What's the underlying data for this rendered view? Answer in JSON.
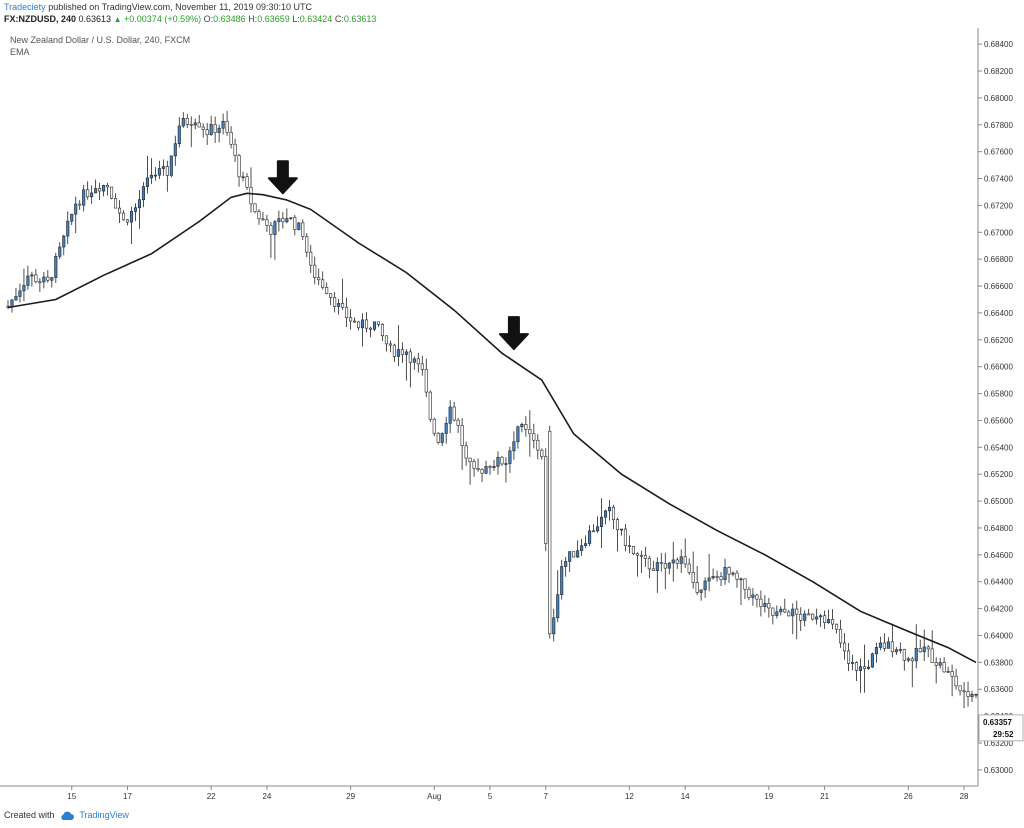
{
  "header": {
    "publisher": "Tradeciety",
    "published_text": "published on TradingView.com, November 11, 2019 09:30:10 UTC",
    "symbol": "FX:NZDUSD, 240",
    "last": "0.63613",
    "change": "+0.00374 (+0.59%)",
    "o_label": "O:",
    "o_value": "0.63486",
    "h_label": "H:",
    "h_value": "0.63659",
    "l_label": "L:",
    "l_value": "0.63424",
    "c_label": "C:",
    "c_value": "0.63613"
  },
  "footer": {
    "created_with": "Created with",
    "brand": "TradingView"
  },
  "colors": {
    "bull": "#3b82c8",
    "bear": "#ffffff",
    "outline": "#222222",
    "ema": "#1a1a1a",
    "axis": "#888888"
  },
  "chart_data": {
    "type": "candlestick",
    "title": "New Zealand Dollar / U.S. Dollar, 240, FXCM",
    "indicator": "EMA",
    "ylim": [
      0.6288,
      0.6852
    ],
    "y_ticks": [
      "0.68400",
      "0.68200",
      "0.68000",
      "0.67800",
      "0.67600",
      "0.67400",
      "0.67200",
      "0.67000",
      "0.66800",
      "0.66600",
      "0.66400",
      "0.66200",
      "0.66000",
      "0.65800",
      "0.65600",
      "0.65400",
      "0.65200",
      "0.65000",
      "0.64800",
      "0.64600",
      "0.64400",
      "0.64200",
      "0.64000",
      "0.63800",
      "0.63600",
      "0.63400",
      "0.63200",
      "0.63000"
    ],
    "last_price_label": "0.63357",
    "countdown_label": "29:52",
    "x_labels": [
      {
        "i": 16,
        "label": "15"
      },
      {
        "i": 30,
        "label": "17"
      },
      {
        "i": 51,
        "label": "22"
      },
      {
        "i": 65,
        "label": "24"
      },
      {
        "i": 86,
        "label": "29"
      },
      {
        "i": 107,
        "label": "Aug"
      },
      {
        "i": 121,
        "label": "5"
      },
      {
        "i": 135,
        "label": "7"
      },
      {
        "i": 156,
        "label": "12"
      },
      {
        "i": 170,
        "label": "14"
      },
      {
        "i": 191,
        "label": "19"
      },
      {
        "i": 205,
        "label": "21"
      },
      {
        "i": 226,
        "label": "26"
      },
      {
        "i": 240,
        "label": "28"
      }
    ],
    "annotations": [
      {
        "type": "down-arrow",
        "i": 69,
        "y": 0.6738
      },
      {
        "type": "down-arrow",
        "i": 127,
        "y": 0.6622
      }
    ],
    "ema_points": [
      [
        0,
        0.6644
      ],
      [
        12,
        0.665
      ],
      [
        24,
        0.6668
      ],
      [
        36,
        0.6684
      ],
      [
        48,
        0.6708
      ],
      [
        56,
        0.6726
      ],
      [
        60,
        0.6729
      ],
      [
        64,
        0.6728
      ],
      [
        70,
        0.6724
      ],
      [
        76,
        0.6717
      ],
      [
        88,
        0.6692
      ],
      [
        100,
        0.667
      ],
      [
        112,
        0.6642
      ],
      [
        124,
        0.661
      ],
      [
        134,
        0.659
      ],
      [
        142,
        0.655
      ],
      [
        154,
        0.652
      ],
      [
        166,
        0.6498
      ],
      [
        178,
        0.6478
      ],
      [
        190,
        0.646
      ],
      [
        202,
        0.644
      ],
      [
        214,
        0.6418
      ],
      [
        226,
        0.6403
      ],
      [
        236,
        0.6391
      ],
      [
        243,
        0.638
      ]
    ],
    "candle_anchors": [
      [
        0,
        0.6645
      ],
      [
        5,
        0.6668
      ],
      [
        10,
        0.6662
      ],
      [
        13,
        0.6686
      ],
      [
        17,
        0.6722
      ],
      [
        22,
        0.6735
      ],
      [
        25,
        0.6735
      ],
      [
        29,
        0.6708
      ],
      [
        32,
        0.6718
      ],
      [
        36,
        0.6743
      ],
      [
        40,
        0.6745
      ],
      [
        43,
        0.678
      ],
      [
        47,
        0.6785
      ],
      [
        50,
        0.6775
      ],
      [
        54,
        0.678
      ],
      [
        56,
        0.6765
      ],
      [
        58,
        0.6745
      ],
      [
        62,
        0.6715
      ],
      [
        66,
        0.6702
      ],
      [
        70,
        0.6712
      ],
      [
        74,
        0.67
      ],
      [
        76,
        0.6672
      ],
      [
        80,
        0.6658
      ],
      [
        84,
        0.664
      ],
      [
        88,
        0.663
      ],
      [
        92,
        0.6632
      ],
      [
        96,
        0.6612
      ],
      [
        100,
        0.6612
      ],
      [
        104,
        0.6595
      ],
      [
        106,
        0.6562
      ],
      [
        108,
        0.6545
      ],
      [
        111,
        0.657
      ],
      [
        113,
        0.6555
      ],
      [
        115,
        0.653
      ],
      [
        117,
        0.652
      ],
      [
        121,
        0.6528
      ],
      [
        125,
        0.653
      ],
      [
        128,
        0.6556
      ],
      [
        131,
        0.6548
      ],
      [
        134,
        0.6535
      ],
      [
        136,
        0.6398
      ],
      [
        139,
        0.6452
      ],
      [
        143,
        0.6465
      ],
      [
        147,
        0.648
      ],
      [
        151,
        0.6492
      ],
      [
        153,
        0.648
      ],
      [
        157,
        0.646
      ],
      [
        161,
        0.6452
      ],
      [
        165,
        0.645
      ],
      [
        169,
        0.646
      ],
      [
        172,
        0.6435
      ],
      [
        176,
        0.644
      ],
      [
        180,
        0.6447
      ],
      [
        184,
        0.6438
      ],
      [
        188,
        0.6425
      ],
      [
        192,
        0.6415
      ],
      [
        196,
        0.6418
      ],
      [
        200,
        0.6412
      ],
      [
        204,
        0.6418
      ],
      [
        208,
        0.6402
      ],
      [
        211,
        0.6378
      ],
      [
        215,
        0.6375
      ],
      [
        219,
        0.6392
      ],
      [
        223,
        0.6392
      ],
      [
        226,
        0.6382
      ],
      [
        230,
        0.639
      ],
      [
        234,
        0.6378
      ],
      [
        237,
        0.6368
      ],
      [
        240,
        0.6355
      ],
      [
        243,
        0.6358
      ]
    ],
    "n_candles": 244,
    "note": "Candles span n_candles 4-hour periods; closes interpolated between anchor [index, close] pairs read from the chart."
  }
}
